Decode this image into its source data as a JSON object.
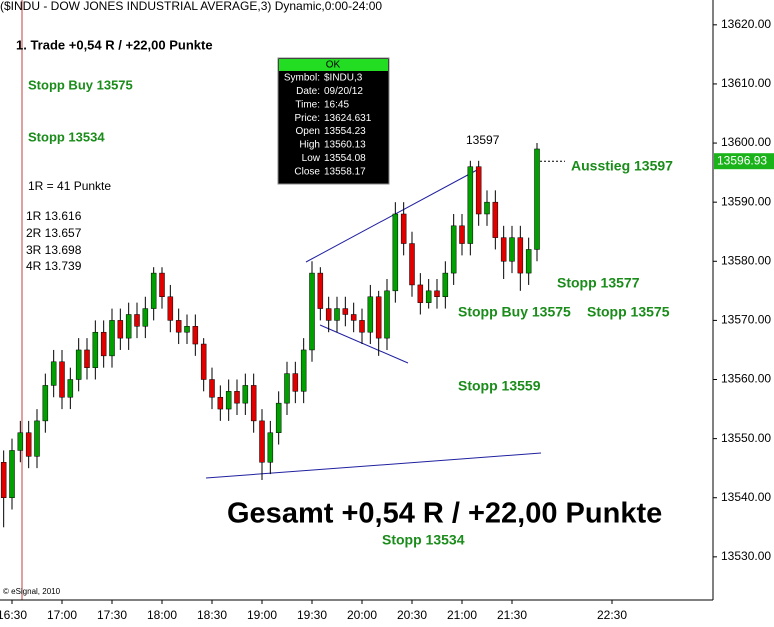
{
  "chart_data": {
    "type": "candlestick",
    "title": "($INDU - DOW JONES INDUSTRIAL AVERAGE,3) Dynamic,0:00-24:00",
    "categories": [
      "16:25",
      "16:30",
      "16:35",
      "16:40",
      "16:45",
      "16:50",
      "16:55",
      "17:00",
      "17:05",
      "17:10",
      "17:15",
      "17:20",
      "17:25",
      "17:30",
      "17:35",
      "17:40",
      "17:45",
      "17:50",
      "17:55",
      "18:00",
      "18:05",
      "18:10",
      "18:15",
      "18:20",
      "18:25",
      "18:30",
      "18:35",
      "18:40",
      "18:45",
      "18:50",
      "18:55",
      "19:00",
      "19:05",
      "19:10",
      "19:15",
      "19:20",
      "19:25",
      "19:30",
      "19:35",
      "19:40",
      "19:45",
      "19:50",
      "19:55",
      "20:00",
      "20:05",
      "20:10",
      "20:15",
      "20:20",
      "20:25",
      "20:30",
      "20:35",
      "20:40",
      "20:45",
      "20:50",
      "20:55",
      "21:00",
      "21:05",
      "21:10",
      "21:15",
      "21:20",
      "21:25",
      "21:30",
      "21:35",
      "21:40",
      "21:45"
    ],
    "open": [
      13546,
      13540,
      13548,
      13551,
      13547,
      13553,
      13559,
      13563,
      13557,
      13560,
      13565,
      13562,
      13568,
      13564,
      13570,
      13567,
      13571,
      13569,
      13572,
      13578,
      13574,
      13570,
      13568,
      13569,
      13566,
      13560,
      13557,
      13555,
      13558,
      13556,
      13559,
      13553,
      13546,
      13551,
      13556,
      13561,
      13558,
      13565,
      13578,
      13572,
      13570,
      13572,
      13571,
      13570,
      13568,
      13574,
      13567,
      13575,
      13588,
      13583,
      13576,
      13573,
      13575,
      13574,
      13578,
      13586,
      13583,
      13596,
      13588,
      13590,
      13584,
      13580,
      13584,
      13578,
      13582
    ],
    "high": [
      13548,
      13550,
      13553,
      13553,
      13555,
      13561,
      13565,
      13565,
      13562,
      13567,
      13567,
      13570,
      13570,
      13572,
      13572,
      13573,
      13573,
      13574,
      13579,
      13579,
      13576,
      13572,
      13571,
      13571,
      13567,
      13562,
      13559,
      13560,
      13560,
      13561,
      13561,
      13555,
      13553,
      13558,
      13563,
      13563,
      13567,
      13580,
      13579,
      13574,
      13574,
      13574,
      13573,
      13572,
      13576,
      13575,
      13577,
      13590,
      13590,
      13585,
      13578,
      13577,
      13577,
      13580,
      13588,
      13588,
      13597,
      13597,
      13592,
      13592,
      13586,
      13586,
      13586,
      13584,
      13600
    ],
    "low": [
      13535,
      13538,
      13546,
      13545,
      13545,
      13551,
      13557,
      13555,
      13555,
      13558,
      13560,
      13560,
      13562,
      13562,
      13565,
      13565,
      13567,
      13567,
      13570,
      13572,
      13568,
      13566,
      13566,
      13564,
      13558,
      13555,
      13553,
      13553,
      13554,
      13554,
      13551,
      13543,
      13544,
      13549,
      13554,
      13556,
      13556,
      13563,
      13570,
      13568,
      13568,
      13569,
      13568,
      13566,
      13566,
      13564,
      13565,
      13573,
      13581,
      13574,
      13571,
      13572,
      13572,
      13572,
      13576,
      13581,
      13581,
      13586,
      13586,
      13582,
      13577,
      13578,
      13575,
      13576,
      13580
    ],
    "close": [
      13540,
      13548,
      13551,
      13547,
      13553,
      13559,
      13563,
      13557,
      13560,
      13565,
      13562,
      13568,
      13564,
      13570,
      13567,
      13571,
      13569,
      13572,
      13578,
      13574,
      13570,
      13568,
      13569,
      13566,
      13560,
      13557,
      13555,
      13558,
      13556,
      13559,
      13553,
      13546,
      13551,
      13556,
      13561,
      13558,
      13565,
      13578,
      13572,
      13570,
      13572,
      13571,
      13570,
      13568,
      13574,
      13567,
      13575,
      13588,
      13583,
      13576,
      13573,
      13575,
      13574,
      13578,
      13586,
      13583,
      13596,
      13588,
      13590,
      13584,
      13580,
      13584,
      13578,
      13582,
      13599
    ],
    "up_color": "#00a000",
    "down_color": "#e00000",
    "ylim": [
      13522.7,
      13624.2
    ],
    "yticks": [
      {
        "value": 13530,
        "label": "13530.00"
      },
      {
        "value": 13540,
        "label": "13540.00"
      },
      {
        "value": 13550,
        "label": "13550.00"
      },
      {
        "value": 13560,
        "label": "13560.00"
      },
      {
        "value": 13570,
        "label": "13570.00"
      },
      {
        "value": 13580,
        "label": "13580.00"
      },
      {
        "value": 13590,
        "label": "13590.00"
      },
      {
        "value": 13600,
        "label": "13600.00"
      },
      {
        "value": 13610,
        "label": "13610.00"
      },
      {
        "value": 13620,
        "label": "13620.00"
      }
    ],
    "xticks": [
      "16:30",
      "17:00",
      "17:30",
      "18:00",
      "18:30",
      "19:00",
      "19:30",
      "20:00",
      "20:30",
      "21:00",
      "21:30",
      "22:30"
    ],
    "last_price": 13596.93,
    "notes_left": [
      "1. Trade +0,54 R / +22,00 Punkte",
      "Stopp Buy 13575",
      "Stopp 13534",
      "1R = 41 Punkte",
      "1R 13.616",
      "2R 13.657",
      "3R 13.698",
      "4R 13.739"
    ],
    "notes_chart": [
      "13597",
      "Ausstieg 13597",
      "Stopp 13577",
      "Stopp Buy 13575",
      "Stopp 13575",
      "Stopp 13559",
      "Gesamt +0,54 R / +22,00 Punkte",
      "Stopp 13534"
    ],
    "watermark": "© eSignal, 2010",
    "tooltip": {
      "title": "OK",
      "rows": [
        [
          "Symbol:",
          "$INDU,3"
        ],
        [
          "Date:",
          "09/20/12"
        ],
        [
          "Time:",
          "16:45"
        ],
        [
          "Price:",
          "13624.631"
        ],
        [
          "Open",
          "13554.23"
        ],
        [
          "High",
          "13560.13"
        ],
        [
          "Low",
          "13554.08"
        ],
        [
          "Close",
          "13558.17"
        ]
      ]
    }
  }
}
